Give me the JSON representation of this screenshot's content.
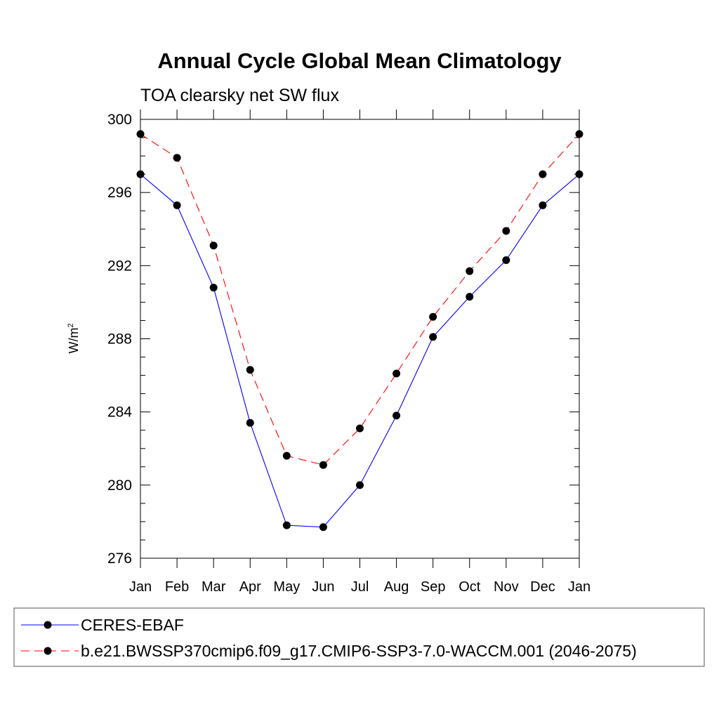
{
  "chart_data": {
    "type": "line",
    "title": "Annual Cycle Global Mean Climatology",
    "subtitle": "TOA clearsky net SW flux",
    "ylabel_main": "W/m",
    "ylabel_sup": "2",
    "xlabel": "",
    "categories": [
      "Jan",
      "Feb",
      "Mar",
      "Apr",
      "May",
      "Jun",
      "Jul",
      "Aug",
      "Sep",
      "Oct",
      "Nov",
      "Dec",
      "Jan"
    ],
    "ylim": [
      276,
      300
    ],
    "yticks": [
      276,
      280,
      284,
      288,
      292,
      296,
      300
    ],
    "series": [
      {
        "name": "CERES-EBAF",
        "color": "#0000ff",
        "dash": "solid",
        "values": [
          297.0,
          295.3,
          290.8,
          283.4,
          277.8,
          277.7,
          280.0,
          283.8,
          288.1,
          290.3,
          292.3,
          295.3,
          297.0
        ]
      },
      {
        "name": "b.e21.BWSSP370cmip6.f09_g17.CMIP6-SSP3-7.0-WACCM.001 (2046-2075)",
        "color": "#ff0000",
        "dash": "dashed",
        "values": [
          299.2,
          297.9,
          293.1,
          286.3,
          281.6,
          281.1,
          283.1,
          286.1,
          289.2,
          291.7,
          293.9,
          297.0,
          299.2
        ]
      }
    ],
    "legend_position": "bottom"
  }
}
